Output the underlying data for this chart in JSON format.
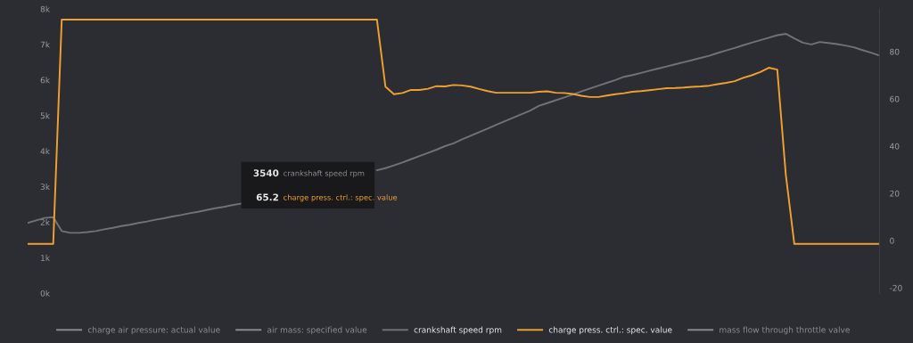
{
  "chart_data": {
    "type": "line",
    "categories": [
      null,
      null,
      null,
      null,
      null,
      null,
      null,
      null,
      null,
      null,
      null,
      null,
      null,
      null,
      null,
      null,
      null,
      null,
      null,
      null,
      null,
      null,
      null,
      null,
      null,
      null,
      null,
      null,
      null,
      null,
      null,
      null,
      null,
      null,
      null,
      null,
      null,
      null,
      null,
      null,
      null,
      null,
      null,
      null,
      null,
      null,
      null,
      null,
      null,
      null,
      null,
      null,
      null,
      null,
      null,
      null,
      null,
      null,
      null,
      null,
      null,
      null,
      null,
      null,
      null,
      null,
      null,
      null,
      null,
      null,
      null,
      null,
      null,
      null,
      null,
      null,
      null,
      null,
      null,
      null,
      null,
      null,
      null,
      null,
      null,
      null,
      null,
      null,
      null,
      null,
      null,
      null,
      null,
      null,
      null,
      null,
      null,
      null,
      null,
      null,
      null
    ],
    "ylim": [
      0,
      8000
    ],
    "yticks": [
      {
        "value": 0,
        "label": "0k"
      },
      {
        "value": 1000,
        "label": "1k"
      },
      {
        "value": 2000,
        "label": "2k"
      },
      {
        "value": 3000,
        "label": "3k"
      },
      {
        "value": 4000,
        "label": "4k"
      },
      {
        "value": 5000,
        "label": "5k"
      },
      {
        "value": 6000,
        "label": "6k"
      },
      {
        "value": 7000,
        "label": "7k"
      },
      {
        "value": 8000,
        "label": "8k"
      }
    ],
    "y2lim": [
      -22.3,
      98.1
    ],
    "y2ticks": [
      -20,
      0,
      20,
      40,
      60,
      80
    ],
    "legend": "bottom",
    "marker": "none",
    "line_style": "solid",
    "series": [
      {
        "name": "charge air pressure: actual value",
        "color": "#8a8c90",
        "values": [
          null,
          null,
          null,
          null,
          null,
          null,
          null,
          null,
          null,
          null,
          null,
          null,
          null,
          null,
          null,
          null,
          null,
          null,
          null,
          null,
          null,
          null,
          null,
          null,
          null,
          null,
          null,
          null,
          null,
          null,
          null,
          null,
          null,
          null,
          null,
          null,
          null,
          null,
          null,
          null,
          null,
          null,
          null,
          null,
          null,
          null,
          null,
          null,
          null,
          null,
          null,
          null,
          null,
          null,
          null,
          null,
          null,
          null,
          null,
          null,
          null,
          null,
          null,
          null,
          null,
          null,
          null,
          null,
          null,
          null,
          null,
          null,
          null,
          null,
          null,
          null,
          null,
          null,
          null,
          null,
          null,
          null,
          null,
          null,
          null,
          null,
          null,
          null,
          null,
          null,
          null,
          null,
          null,
          null,
          null,
          null,
          null,
          null,
          null,
          null,
          null
        ]
      },
      {
        "name": "air mass: specified value",
        "color": "#8a8c90",
        "values": [
          null,
          null,
          null,
          null,
          null,
          null,
          null,
          null,
          null,
          null,
          null,
          null,
          null,
          null,
          null,
          null,
          null,
          null,
          null,
          null,
          null,
          null,
          null,
          null,
          null,
          null,
          null,
          null,
          null,
          null,
          null,
          null,
          null,
          null,
          null,
          null,
          null,
          null,
          null,
          null,
          null,
          null,
          null,
          null,
          null,
          null,
          null,
          null,
          null,
          null,
          null,
          null,
          null,
          null,
          null,
          null,
          null,
          null,
          null,
          null,
          null,
          null,
          null,
          null,
          null,
          null,
          null,
          null,
          null,
          null,
          null,
          null,
          null,
          null,
          null,
          null,
          null,
          null,
          null,
          null,
          null,
          null,
          null,
          null,
          null,
          null,
          null,
          null,
          null,
          null,
          null,
          null,
          null,
          null,
          null,
          null,
          null,
          null,
          null,
          null,
          null
        ]
      },
      {
        "name": "crankshaft speed rpm",
        "color": "#707275",
        "values": [
          1980,
          2050,
          2120,
          2140,
          1750,
          1700,
          1700,
          1720,
          1750,
          1800,
          1840,
          1890,
          1930,
          1980,
          2020,
          2070,
          2110,
          2160,
          2200,
          2250,
          2290,
          2340,
          2390,
          2430,
          2480,
          2520,
          null,
          null,
          null,
          null,
          null,
          null,
          null,
          null,
          null,
          null,
          null,
          null,
          null,
          null,
          null,
          3460,
          3520,
          3600,
          3680,
          3770,
          3860,
          3950,
          4040,
          4140,
          4220,
          4330,
          4430,
          4530,
          4630,
          4740,
          4840,
          4940,
          5040,
          5140,
          5270,
          5350,
          5430,
          5510,
          5590,
          5680,
          5760,
          5840,
          5920,
          6000,
          6090,
          6140,
          6200,
          6260,
          6320,
          6380,
          6440,
          6500,
          6560,
          6620,
          6680,
          6760,
          6830,
          6900,
          6980,
          7050,
          7120,
          7190,
          7260,
          7300,
          7170,
          7050,
          7000,
          7070,
          7040,
          7010,
          6970,
          6920,
          6840,
          6770,
          6690
        ]
      },
      {
        "name": "charge press. ctrl.: spec. value",
        "color": "#f0a030",
        "axis": "y2",
        "values": [
          -1.4,
          -1.4,
          -1.4,
          -1.4,
          93.6,
          93.6,
          93.6,
          93.6,
          93.6,
          93.6,
          93.6,
          93.6,
          93.6,
          93.6,
          93.6,
          93.6,
          93.6,
          93.6,
          93.6,
          93.6,
          93.6,
          93.6,
          93.6,
          93.6,
          93.6,
          93.6,
          93.6,
          93.6,
          93.6,
          93.6,
          93.6,
          93.6,
          93.6,
          93.6,
          93.6,
          93.6,
          93.6,
          93.6,
          93.6,
          93.6,
          93.6,
          93.6,
          65.2,
          62,
          62.5,
          63.8,
          63.8,
          64.3,
          65.4,
          65.3,
          65.9,
          65.7,
          65.2,
          64.2,
          63.3,
          62.6,
          62.6,
          62.6,
          62.6,
          62.6,
          63,
          63.2,
          62.6,
          62.5,
          62.1,
          61.3,
          60.8,
          60.8,
          61.4,
          62,
          62.4,
          63,
          63.3,
          63.7,
          64.1,
          64.5,
          64.6,
          64.8,
          65.1,
          65.3,
          65.6,
          66.2,
          66.8,
          67.5,
          68.9,
          70,
          71.4,
          73.2,
          72.4,
          28,
          -1.4,
          -1.4,
          -1.4,
          -1.4,
          -1.4,
          -1.4,
          -1.4,
          -1.4,
          -1.4,
          -1.4,
          -1.4
        ]
      },
      {
        "name": "mass flow through throttle valve",
        "color": "#8a8c90",
        "values": [
          null,
          null,
          null,
          null,
          null,
          null,
          null,
          null,
          null,
          null,
          null,
          null,
          null,
          null,
          null,
          null,
          null,
          null,
          null,
          null,
          null,
          null,
          null,
          null,
          null,
          null,
          null,
          null,
          null,
          null,
          null,
          null,
          null,
          null,
          null,
          null,
          null,
          null,
          null,
          null,
          null,
          null,
          null,
          null,
          null,
          null,
          null,
          null,
          null,
          null,
          null,
          null,
          null,
          null,
          null,
          null,
          null,
          null,
          null,
          null,
          null,
          null,
          null,
          null,
          null,
          null,
          null,
          null,
          null,
          null,
          null,
          null,
          null,
          null,
          null,
          null,
          null,
          null,
          null,
          null,
          null,
          null,
          null,
          null,
          null,
          null,
          null,
          null,
          null,
          null,
          null,
          null,
          null,
          null,
          null,
          null,
          null,
          null,
          null,
          null,
          null
        ]
      }
    ],
    "annotations": [
      "3540",
      "crankshaft speed rpm",
      "65.2",
      "charge press. ctrl.: spec. value"
    ]
  }
}
